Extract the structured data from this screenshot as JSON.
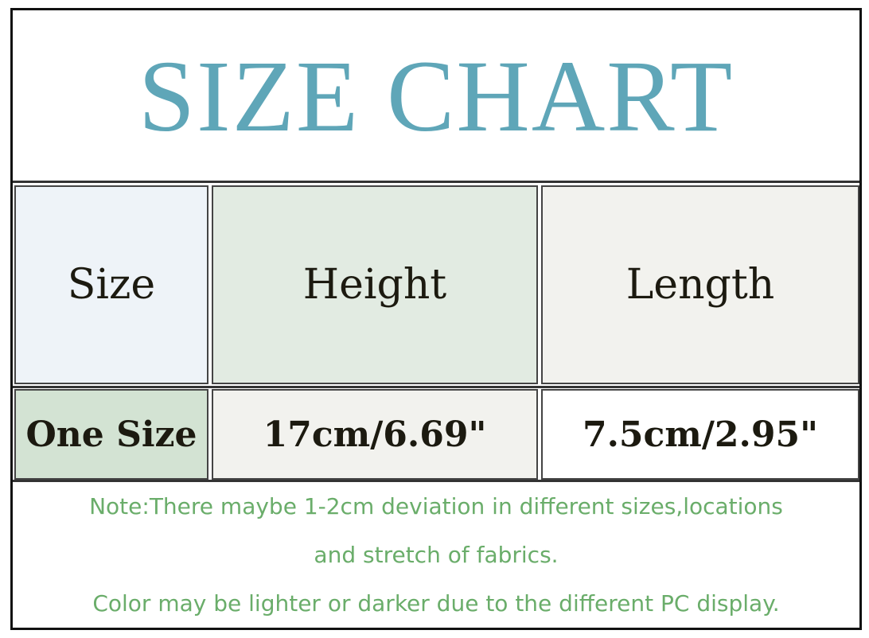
{
  "title": "SIZE CHART",
  "colors": {
    "title": "#5fa6b8",
    "note_text": "#6aad6a"
  },
  "table": {
    "headers": [
      "Size",
      "Height",
      "Length"
    ],
    "rows": [
      [
        "One Size",
        "17cm/6.69\"",
        "7.5cm/2.95\""
      ]
    ]
  },
  "notes": [
    "Note:There maybe 1-2cm deviation in different sizes,locations",
    "and stretch of fabrics.",
    "Color may be lighter or darker due to the different PC display."
  ]
}
